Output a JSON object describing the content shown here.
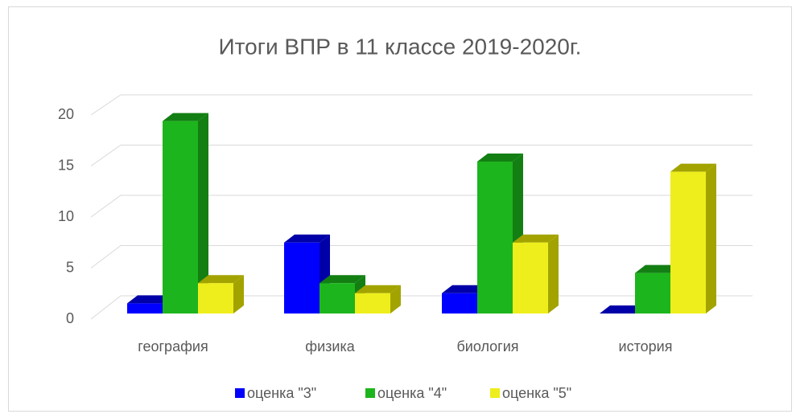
{
  "chart_data": {
    "type": "bar3d",
    "title": "Итоги ВПР в 11 классе 2019-2020г.",
    "categories": [
      "география",
      "физика",
      "биология",
      "история"
    ],
    "series": [
      {
        "name": "оценка \"3\"",
        "color": "#0000ff",
        "side": "#0000a8",
        "values": [
          1,
          7,
          2,
          0
        ]
      },
      {
        "name": "оценка \"4\"",
        "color": "#1db51d",
        "side": "#137f13",
        "values": [
          19,
          3,
          15,
          4
        ]
      },
      {
        "name": "оценка \"5\"",
        "color": "#eeee1c",
        "side": "#a3a300",
        "values": [
          3,
          2,
          7,
          14
        ]
      }
    ],
    "ylim": [
      0,
      20
    ],
    "yticks": [
      0,
      5,
      10,
      15,
      20
    ],
    "grid": true,
    "legend": "bottom"
  }
}
